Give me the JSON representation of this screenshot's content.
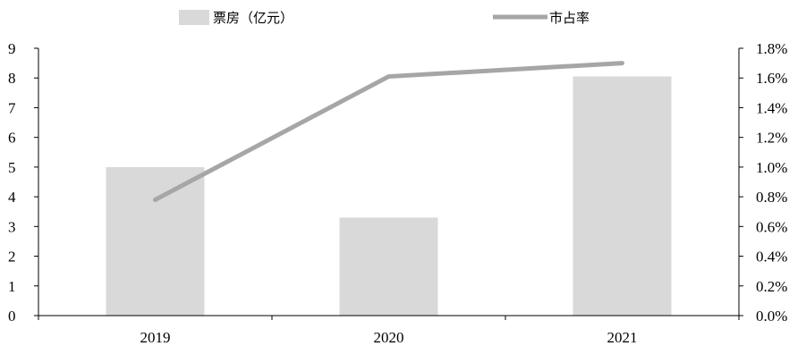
{
  "chart_data": {
    "type": "bar+line",
    "categories": [
      "2019",
      "2020",
      "2021"
    ],
    "series": [
      {
        "name": "票房（亿元）",
        "type": "bar",
        "axis": "left",
        "values": [
          5.0,
          3.3,
          8.05
        ],
        "color": "#d9d9d9"
      },
      {
        "name": "市占率",
        "type": "line",
        "axis": "right",
        "values": [
          0.78,
          1.61,
          1.7
        ],
        "unit": "%",
        "color": "#a6a6a6"
      }
    ],
    "y_left": {
      "min": 0,
      "max": 9,
      "step": 1
    },
    "y_right": {
      "min": 0,
      "max": 1.8,
      "step": 0.2,
      "unit": "%"
    },
    "legend_position": "top-center",
    "grid": false
  }
}
